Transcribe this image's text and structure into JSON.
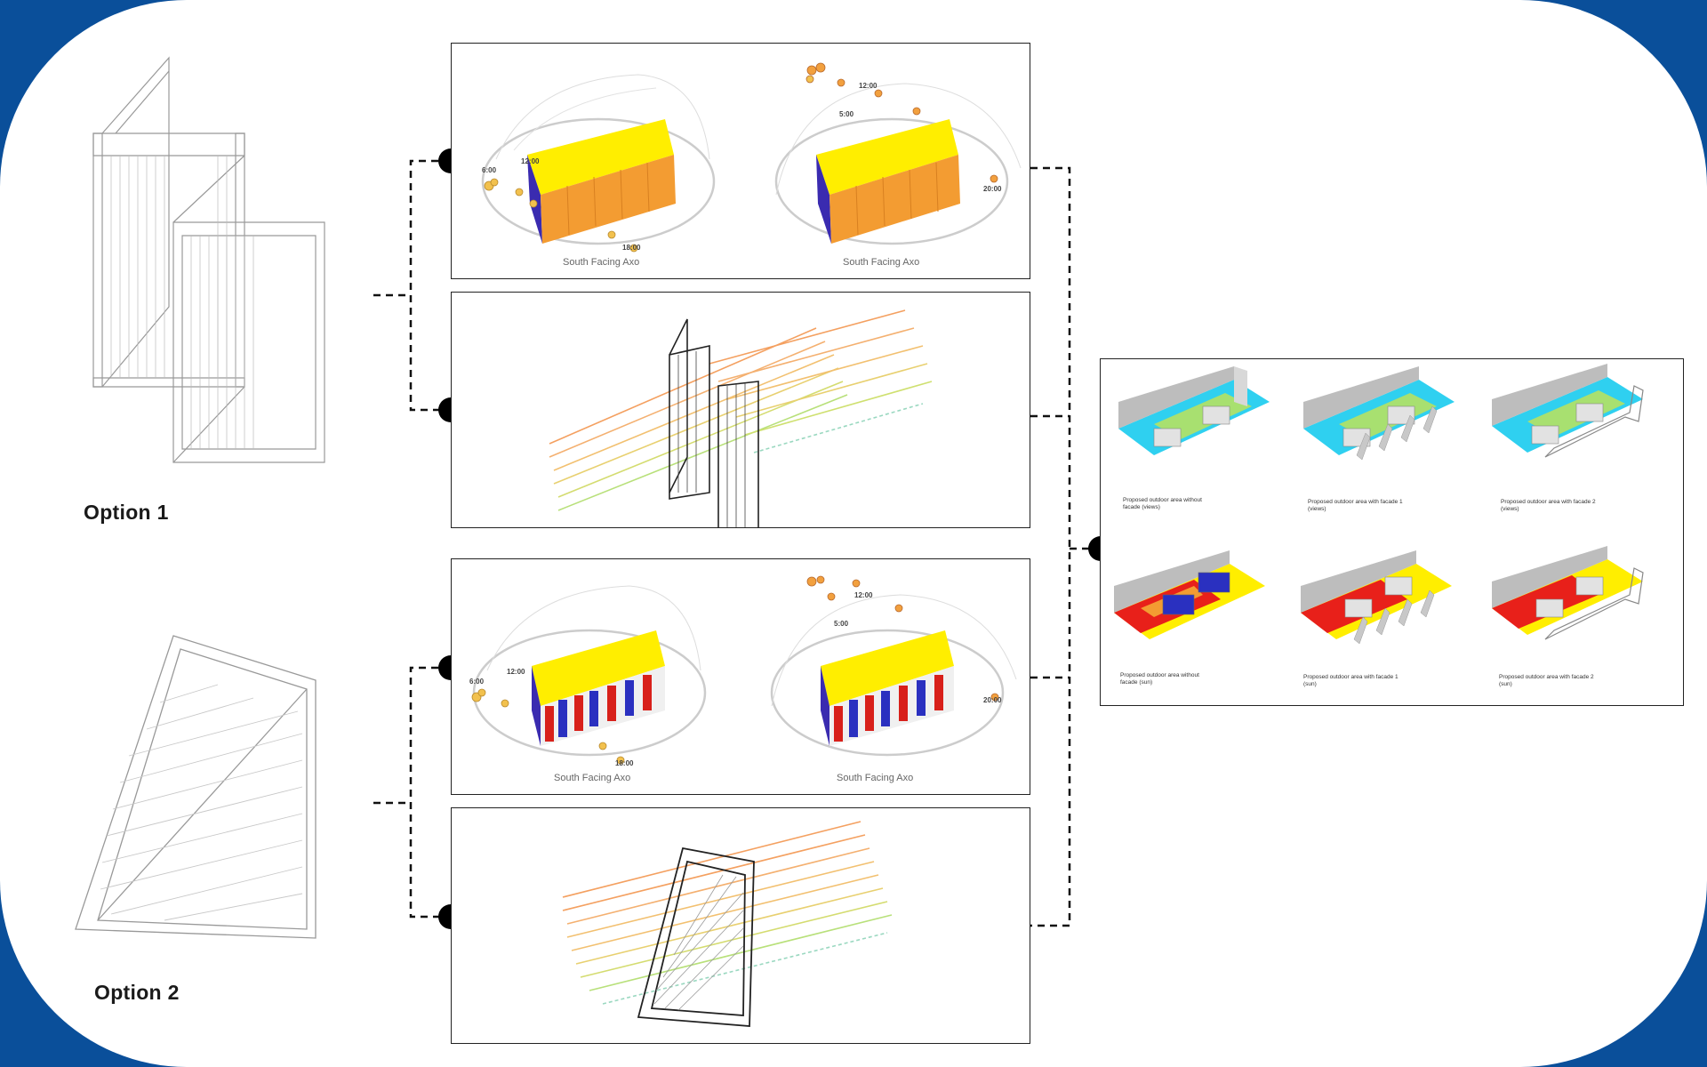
{
  "options": [
    {
      "label": "Option 1"
    },
    {
      "label": "Option 2"
    }
  ],
  "sun_panels": [
    {
      "captions": [
        "South Facing Axo",
        "South Facing Axo"
      ],
      "times_left": [
        "6:00",
        "12:00",
        "18:00"
      ],
      "times_right": [
        "12:00",
        "5:00",
        "20:00"
      ]
    },
    {
      "captions": [
        "South Facing Axo",
        "South Facing Axo"
      ],
      "times_left": [
        "6:00",
        "12:00",
        "18:00"
      ],
      "times_right": [
        "12:00",
        "5:00",
        "20:00"
      ]
    }
  ],
  "results": {
    "captions": [
      "Proposed outdoor area without facade (views)",
      "Proposed outdoor area with facade 1 (views)",
      "Proposed outdoor area with facade 2 (views)",
      "Proposed outdoor area without facade (sun)",
      "Proposed outdoor area with facade 1 (sun)",
      "Proposed outdoor area with facade 2 (sun)"
    ]
  },
  "colors": {
    "background": "#0a4f9a",
    "radiation_high": "#ffee00",
    "radiation_mid": "#f39c32",
    "radiation_low": "#3a2bb0",
    "view_low": "#2fd0f0",
    "view_high": "#a8e070",
    "sun_high": "#e8201a"
  }
}
